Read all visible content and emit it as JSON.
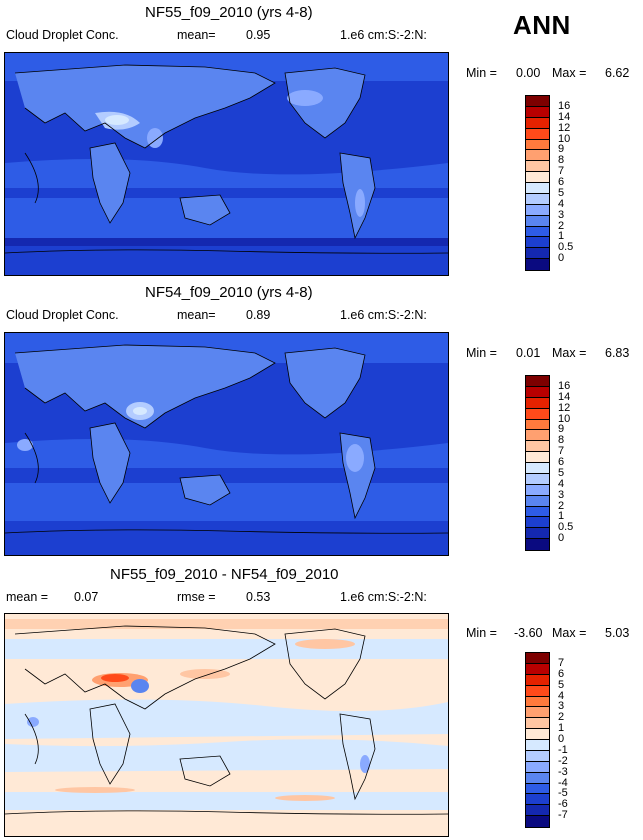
{
  "season_label": "ANN",
  "panels": [
    {
      "title": "NF55_f09_2010 (yrs 4-8)",
      "variable": "Cloud Droplet Conc.",
      "stat_label": "mean=",
      "stat_value": "0.95",
      "units": "1.e6 cm:S:-2:N:",
      "min_label": "Min =",
      "min_value": "0.00",
      "max_label": "Max =",
      "max_value": "6.62",
      "colorbar_levels": [
        "16",
        "14",
        "12",
        "10",
        "9",
        "8",
        "7",
        "6",
        "5",
        "4",
        "3",
        "2",
        "1",
        "0.5",
        "0"
      ],
      "colors": [
        "#7d0000",
        "#b80000",
        "#e52200",
        "#ff4a1a",
        "#ff7a3d",
        "#ffa070",
        "#ffc6a3",
        "#ffe9d6",
        "#d6e9ff",
        "#b3ccff",
        "#8aaaff",
        "#5a85f0",
        "#2e5ce6",
        "#1c3fd0",
        "#1428b0",
        "#0a0a80"
      ]
    },
    {
      "title": "NF54_f09_2010 (yrs 4-8)",
      "variable": "Cloud Droplet Conc.",
      "stat_label": "mean=",
      "stat_value": "0.89",
      "units": "1.e6 cm:S:-2:N:",
      "min_label": "Min =",
      "min_value": "0.01",
      "max_label": "Max =",
      "max_value": "6.83",
      "colorbar_levels": [
        "16",
        "14",
        "12",
        "10",
        "9",
        "8",
        "7",
        "6",
        "5",
        "4",
        "3",
        "2",
        "1",
        "0.5",
        "0"
      ],
      "colors": [
        "#7d0000",
        "#b80000",
        "#e52200",
        "#ff4a1a",
        "#ff7a3d",
        "#ffa070",
        "#ffc6a3",
        "#ffe9d6",
        "#d6e9ff",
        "#b3ccff",
        "#8aaaff",
        "#5a85f0",
        "#2e5ce6",
        "#1c3fd0",
        "#1428b0",
        "#0a0a80"
      ]
    },
    {
      "title": "NF55_f09_2010 - NF54_f09_2010",
      "stat_label": "mean =",
      "stat_value": "0.07",
      "rmse_label": "rmse =",
      "rmse_value": "0.53",
      "units": "1.e6 cm:S:-2:N:",
      "min_label": "Min =",
      "min_value": "-3.60",
      "max_label": "Max =",
      "max_value": "5.03",
      "colorbar_levels": [
        "7",
        "6",
        "5",
        "4",
        "3",
        "2",
        "1",
        "0",
        "-1",
        "-2",
        "-3",
        "-4",
        "-5",
        "-6",
        "-7"
      ],
      "colors": [
        "#7d0000",
        "#b80000",
        "#e52200",
        "#ff4a1a",
        "#ff7a3d",
        "#ffa070",
        "#ffc6a3",
        "#ffe9d6",
        "#d6e9ff",
        "#b3ccff",
        "#8aaaff",
        "#5a85f0",
        "#2e5ce6",
        "#1c3fd0",
        "#1428b0",
        "#0a0a80"
      ]
    }
  ],
  "chart_data": [
    {
      "type": "heatmap",
      "title": "NF55_f09_2010 (yrs 4-8)",
      "variable": "Cloud Droplet Conc.",
      "mean": 0.95,
      "min": 0.0,
      "max": 6.62,
      "units": "1.e6 cm:S:-2:N:",
      "levels": [
        0,
        0.5,
        1,
        2,
        3,
        4,
        5,
        6,
        7,
        8,
        9,
        10,
        12,
        14,
        16
      ]
    },
    {
      "type": "heatmap",
      "title": "NF54_f09_2010 (yrs 4-8)",
      "variable": "Cloud Droplet Conc.",
      "mean": 0.89,
      "min": 0.01,
      "max": 6.83,
      "units": "1.e6 cm:S:-2:N:",
      "levels": [
        0,
        0.5,
        1,
        2,
        3,
        4,
        5,
        6,
        7,
        8,
        9,
        10,
        12,
        14,
        16
      ]
    },
    {
      "type": "heatmap",
      "title": "NF55_f09_2010 - NF54_f09_2010",
      "mean": 0.07,
      "rmse": 0.53,
      "min": -3.6,
      "max": 5.03,
      "units": "1.e6 cm:S:-2:N:",
      "levels": [
        -7,
        -6,
        -5,
        -4,
        -3,
        -2,
        -1,
        0,
        1,
        2,
        3,
        4,
        5,
        6,
        7
      ]
    }
  ]
}
